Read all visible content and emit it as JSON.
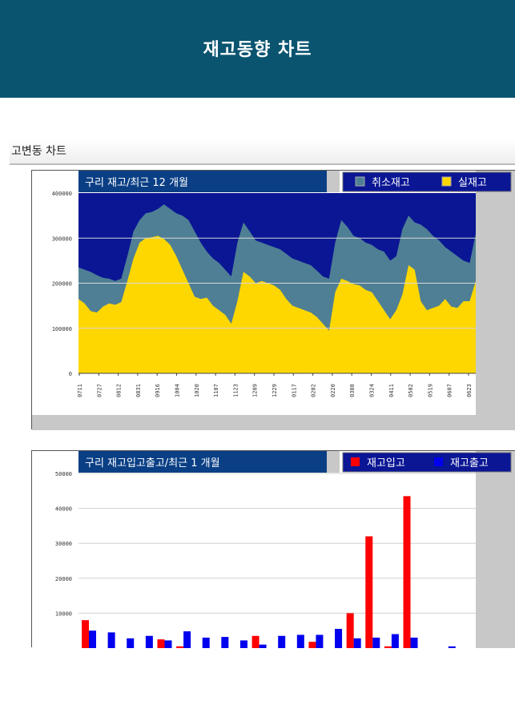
{
  "header": {
    "title": "재고동향 차트"
  },
  "section": {
    "title": "고변동 차트"
  },
  "colors": {
    "header_bg": "#0a5470",
    "stock_area": "#ffd700",
    "cancel_area": "#4f7f94",
    "plot_bg": "#0a1694",
    "inbound_bar": "#ff0000",
    "outbound_bar": "#0000ee",
    "chart_title_bg": "#0a3f85",
    "frame_grey": "#c8c8c8"
  },
  "chart_data": [
    {
      "type": "area",
      "title": "구리 재고/최근  12 개월",
      "legend_placement": "top-right",
      "legend": [
        {
          "name": "취소재고",
          "color": "#4f7f94"
        },
        {
          "name": "실재고",
          "color": "#ffd700"
        }
      ],
      "y_ticks": [
        "0",
        "100000",
        "200000",
        "300000",
        "400000"
      ],
      "ylim": [
        0,
        400000
      ],
      "x_tick_labels": [
        "0711",
        "0727",
        "0812",
        "0831",
        "0916",
        "1004",
        "1020",
        "1107",
        "1123",
        "1209",
        "1229",
        "0117",
        "0202",
        "0220",
        "0308",
        "0324",
        "0411",
        "0502",
        "0519",
        "0607",
        "0623"
      ],
      "grid": true,
      "series": [
        {
          "name": "실재고",
          "values": [
            165000,
            155000,
            138000,
            135000,
            148000,
            155000,
            152000,
            158000,
            205000,
            255000,
            290000,
            300000,
            302000,
            305000,
            298000,
            285000,
            260000,
            230000,
            200000,
            170000,
            165000,
            168000,
            150000,
            140000,
            130000,
            110000,
            160000,
            225000,
            215000,
            200000,
            205000,
            200000,
            195000,
            185000,
            165000,
            150000,
            145000,
            140000,
            135000,
            125000,
            110000,
            95000,
            180000,
            210000,
            205000,
            198000,
            195000,
            185000,
            180000,
            160000,
            140000,
            120000,
            140000,
            175000,
            240000,
            230000,
            160000,
            140000,
            145000,
            150000,
            165000,
            148000,
            145000,
            160000,
            160000,
            205000
          ]
        },
        {
          "name": "취소재고",
          "values": [
            235000,
            230000,
            225000,
            218000,
            212000,
            210000,
            205000,
            210000,
            260000,
            315000,
            340000,
            355000,
            358000,
            365000,
            375000,
            365000,
            355000,
            350000,
            340000,
            315000,
            290000,
            270000,
            255000,
            245000,
            230000,
            215000,
            290000,
            335000,
            315000,
            295000,
            290000,
            285000,
            280000,
            275000,
            265000,
            255000,
            250000,
            245000,
            240000,
            228000,
            215000,
            210000,
            290000,
            340000,
            325000,
            305000,
            300000,
            290000,
            285000,
            275000,
            270000,
            250000,
            260000,
            320000,
            350000,
            335000,
            330000,
            320000,
            305000,
            295000,
            280000,
            270000,
            260000,
            250000,
            245000,
            310000
          ]
        }
      ]
    },
    {
      "type": "bar",
      "title": "구리 재고입고출고/최근  1 개월",
      "legend_placement": "top-right",
      "legend": [
        {
          "name": "재고입고",
          "color": "#ff0000"
        },
        {
          "name": "재고출고",
          "color": "#0000ee"
        }
      ],
      "y_ticks": [
        "10000",
        "20000",
        "30000",
        "40000",
        "50000"
      ],
      "ylim": [
        0,
        50000
      ],
      "grid": true,
      "series": [
        {
          "name": "재고입고",
          "values": [
            8000,
            0,
            0,
            0,
            2500,
            500,
            0,
            0,
            0,
            3500,
            0,
            0,
            1800,
            0,
            10000,
            32000,
            500,
            43500,
            0,
            0,
            0
          ]
        },
        {
          "name": "재고출고",
          "values": [
            5000,
            4500,
            2800,
            3500,
            2200,
            4800,
            3000,
            3200,
            2200,
            1000,
            3500,
            3800,
            3800,
            5500,
            2800,
            3000,
            4000,
            3000,
            0,
            500,
            0
          ]
        }
      ]
    }
  ]
}
